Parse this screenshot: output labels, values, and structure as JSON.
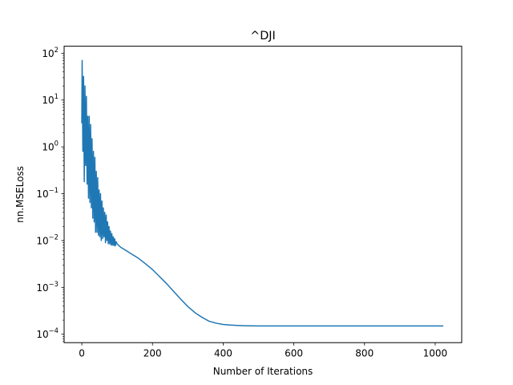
{
  "chart_data": {
    "type": "line",
    "title": "^DJI",
    "xlabel": "Number of Iterations",
    "ylabel": "nn.MSELoss",
    "xlim": [
      -50,
      1075
    ],
    "ylim_log10": [
      -4.18,
      2.15
    ],
    "yscale": "log",
    "grid": false,
    "legend": "none",
    "line_color": "#1f77b4",
    "x_ticks": [
      {
        "value": 0,
        "label": "0"
      },
      {
        "value": 200,
        "label": "200"
      },
      {
        "value": 400,
        "label": "400"
      },
      {
        "value": 600,
        "label": "600"
      },
      {
        "value": 800,
        "label": "800"
      },
      {
        "value": 1000,
        "label": "1000"
      }
    ],
    "y_ticks": [
      {
        "value": 100,
        "label": "10",
        "exp": "2"
      },
      {
        "value": 10,
        "label": "10",
        "exp": "1"
      },
      {
        "value": 1,
        "label": "10",
        "exp": "0"
      },
      {
        "value": 0.1,
        "label": "10",
        "exp": "−1"
      },
      {
        "value": 0.01,
        "label": "10",
        "exp": "−2"
      },
      {
        "value": 0.001,
        "label": "10",
        "exp": "−3"
      },
      {
        "value": 0.0001,
        "label": "10",
        "exp": "−4"
      }
    ],
    "series": [
      {
        "x": [
          0,
          1,
          3,
          5,
          7,
          9,
          11,
          13,
          15,
          17,
          19,
          21,
          23,
          25,
          27,
          29,
          31,
          33,
          35,
          37,
          39,
          41,
          43,
          45,
          47,
          49,
          51,
          53,
          55,
          57,
          59,
          61,
          63,
          65,
          67,
          69,
          71,
          73,
          75,
          77,
          79,
          81,
          83,
          85,
          87,
          89,
          91,
          93,
          95,
          97,
          100,
          110,
          120,
          140,
          160,
          180,
          200,
          220,
          240,
          260,
          280,
          300,
          320,
          340,
          360,
          380,
          400,
          420,
          440,
          460,
          480,
          500,
          550,
          600,
          700,
          800,
          900,
          1000,
          1023
        ],
        "y": [
          3.2,
          70,
          0.8,
          32,
          0.18,
          20,
          0.4,
          12,
          0.16,
          4.5,
          0.08,
          4.5,
          0.065,
          3.0,
          0.05,
          1.5,
          0.03,
          0.8,
          0.025,
          0.6,
          0.015,
          0.3,
          0.015,
          0.22,
          0.013,
          0.12,
          0.012,
          0.1,
          0.01,
          0.07,
          0.011,
          0.05,
          0.012,
          0.04,
          0.009,
          0.035,
          0.01,
          0.025,
          0.0085,
          0.02,
          0.0085,
          0.016,
          0.008,
          0.014,
          0.008,
          0.012,
          0.0078,
          0.011,
          0.0077,
          0.0095,
          0.0085,
          0.0072,
          0.0065,
          0.0052,
          0.0042,
          0.0032,
          0.0024,
          0.0017,
          0.0012,
          0.00082,
          0.00056,
          0.00039,
          0.00029,
          0.00023,
          0.00019,
          0.000172,
          0.000162,
          0.000157,
          0.000154,
          0.000152,
          0.000151,
          0.00015,
          0.00015,
          0.00015,
          0.00015,
          0.00015,
          0.00015,
          0.00015,
          0.00015
        ]
      }
    ]
  }
}
